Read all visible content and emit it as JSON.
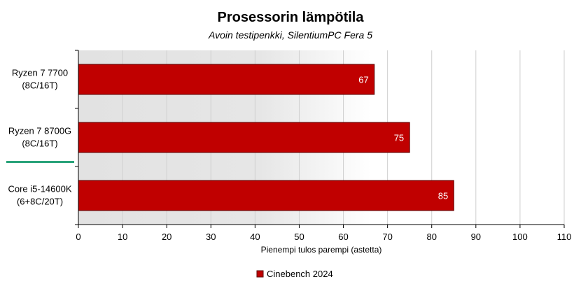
{
  "colors": {
    "bar": "#c00000",
    "bar_edge": "#5a0000",
    "highlight": "#2aa37a",
    "grid": "#cfcfcf",
    "shade": "#e2e2e2"
  },
  "chart_data": {
    "type": "bar",
    "orientation": "horizontal",
    "title": "Prosessorin lämpötila",
    "subtitle": "Avoin testipenkki, SilentiumPC Fera 5",
    "categories": [
      [
        "Ryzen 7 7700",
        "(8C/16T)"
      ],
      [
        "Ryzen 7 8700G",
        "(8C/16T)"
      ],
      [
        "Core i5-14600K",
        "(6+8C/20T)"
      ]
    ],
    "highlighted_category": 1,
    "series": [
      {
        "name": "Cinebench 2024",
        "values": [
          67,
          75,
          85
        ]
      }
    ],
    "xlabel": "Pienempi tulos parempi (astetta)",
    "xlim": [
      0,
      110
    ],
    "xticks": [
      0,
      10,
      20,
      30,
      40,
      50,
      60,
      70,
      80,
      90,
      100,
      110
    ],
    "grid": true,
    "legend_position": "bottom-center"
  }
}
